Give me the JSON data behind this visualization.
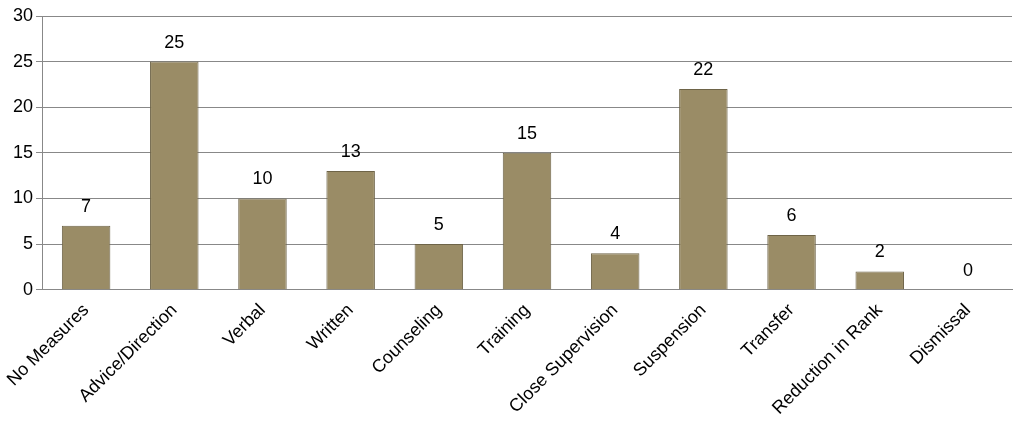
{
  "chart_data": {
    "type": "bar",
    "categories": [
      "No Measures",
      "Advice/Direction",
      "Verbal",
      "Written",
      "Counseling",
      "Training",
      "Close Supervision",
      "Suspension",
      "Transfer",
      "Reduction in Rank",
      "Dismissal"
    ],
    "values": [
      7,
      25,
      10,
      13,
      5,
      15,
      4,
      22,
      6,
      2,
      0
    ],
    "color": "#9a8c66",
    "ylim": [
      0,
      30
    ],
    "yticks": [
      0,
      5,
      10,
      15,
      20,
      25,
      30
    ],
    "grid": "y",
    "data_labels": true,
    "legend": false
  }
}
